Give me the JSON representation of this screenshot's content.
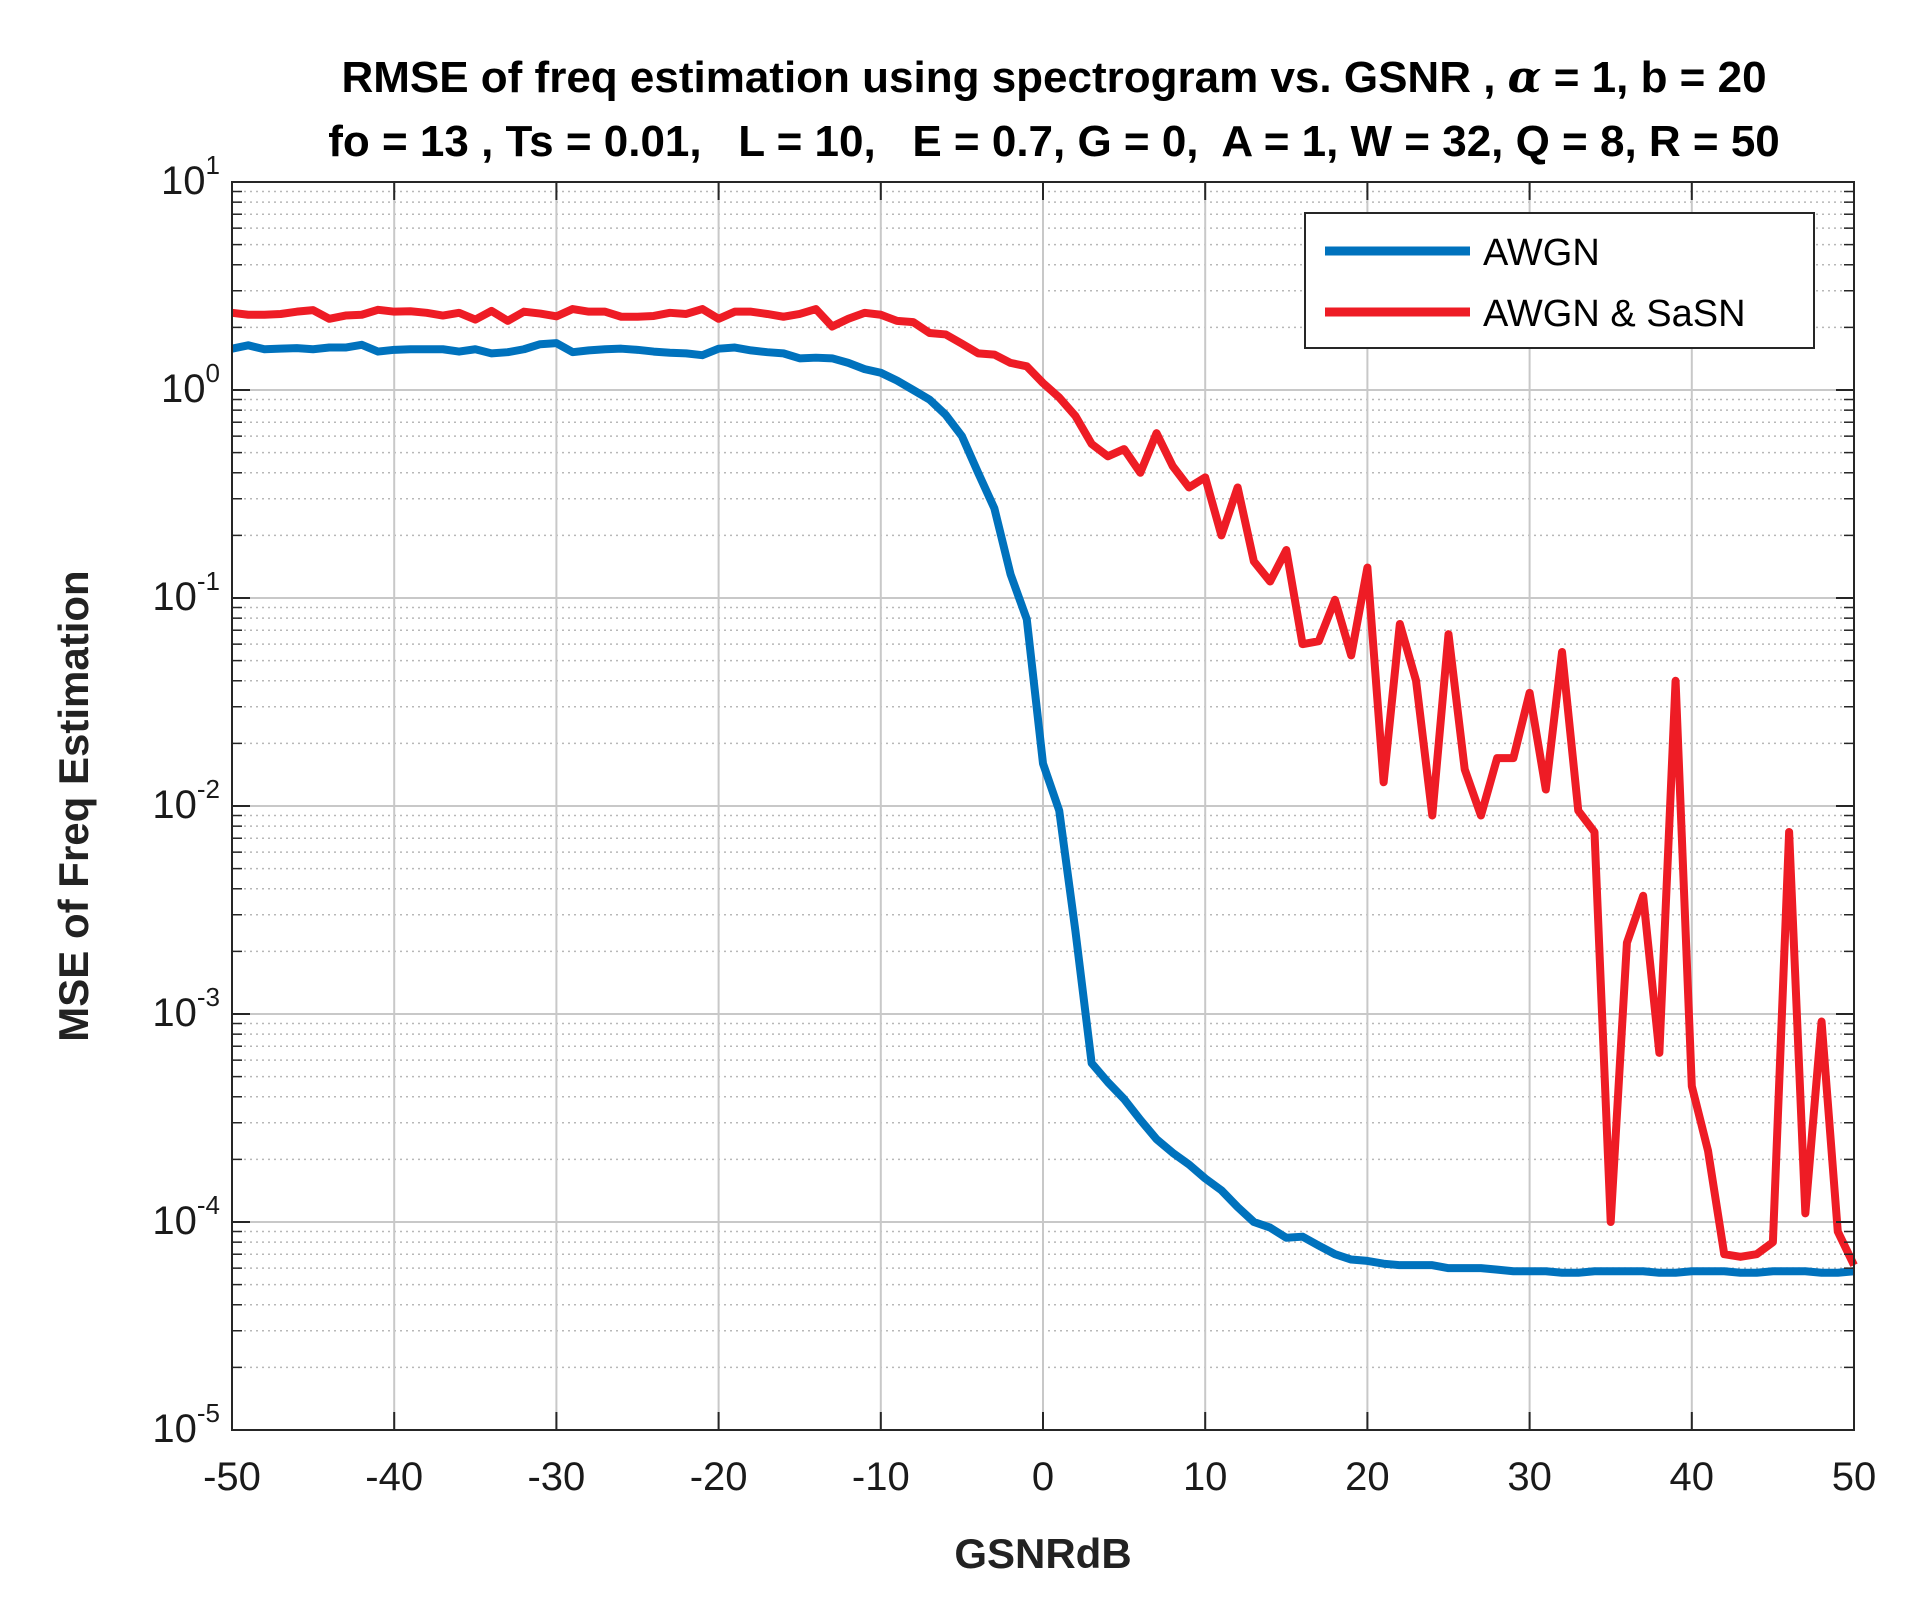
{
  "chart_data": {
    "type": "line",
    "title_line1_pre": "RMSE of freq estimation using spectrogram vs. GSNR , ",
    "title_alpha": "α",
    "title_line1_post": " = 1, b = 20",
    "title_line2": "fo = 13 , Ts = 0.01,   L = 10,   E = 0.7, G = 0,  A = 1, W = 32, Q = 8, R = 50",
    "xlabel": "GSNRdB",
    "ylabel": "MSE of Freq Estimation",
    "xlim": [
      -50,
      50
    ],
    "ylim": [
      1e-05,
      10
    ],
    "yscale": "log",
    "grid": true,
    "minor_grid": true,
    "legend_position": "top-right",
    "x_ticks": [
      "-50",
      "-40",
      "-30",
      "-20",
      "-10",
      "0",
      "10",
      "20",
      "30",
      "40",
      "50"
    ],
    "y_ticks": [
      {
        "base": "10",
        "exp": "1",
        "value": 10
      },
      {
        "base": "10",
        "exp": "0",
        "value": 1
      },
      {
        "base": "10",
        "exp": "-1",
        "value": 0.1
      },
      {
        "base": "10",
        "exp": "-2",
        "value": 0.01
      },
      {
        "base": "10",
        "exp": "-3",
        "value": 0.001
      },
      {
        "base": "10",
        "exp": "-4",
        "value": 0.0001
      },
      {
        "base": "10",
        "exp": "-5",
        "value": 1e-05
      }
    ],
    "x": [
      -50,
      -49,
      -48,
      -47,
      -46,
      -45,
      -44,
      -43,
      -42,
      -41,
      -40,
      -39,
      -38,
      -37,
      -36,
      -35,
      -34,
      -33,
      -32,
      -31,
      -30,
      -29,
      -28,
      -27,
      -26,
      -25,
      -24,
      -23,
      -22,
      -21,
      -20,
      -19,
      -18,
      -17,
      -16,
      -15,
      -14,
      -13,
      -12,
      -11,
      -10,
      -9,
      -8,
      -7,
      -6,
      -5,
      -4,
      -3,
      -2,
      -1,
      0,
      1,
      2,
      3,
      4,
      5,
      6,
      7,
      8,
      9,
      10,
      11,
      12,
      13,
      14,
      15,
      16,
      17,
      18,
      19,
      20,
      21,
      22,
      23,
      24,
      25,
      26,
      27,
      28,
      29,
      30,
      31,
      32,
      33,
      34,
      35,
      36,
      37,
      38,
      39,
      40,
      41,
      42,
      43,
      44,
      45,
      46,
      47,
      48,
      49,
      50
    ],
    "series": [
      {
        "name": "AWGN",
        "color": "#0072BD",
        "values": [
          1.58,
          1.64,
          1.57,
          1.58,
          1.59,
          1.57,
          1.6,
          1.6,
          1.65,
          1.53,
          1.56,
          1.57,
          1.57,
          1.57,
          1.53,
          1.57,
          1.5,
          1.52,
          1.57,
          1.66,
          1.68,
          1.52,
          1.55,
          1.57,
          1.58,
          1.56,
          1.53,
          1.51,
          1.5,
          1.47,
          1.58,
          1.6,
          1.55,
          1.52,
          1.5,
          1.42,
          1.43,
          1.42,
          1.35,
          1.26,
          1.21,
          1.11,
          1.0,
          0.9,
          0.76,
          0.6,
          0.4,
          0.27,
          0.13,
          0.079,
          0.016,
          0.0095,
          0.0025,
          0.00058,
          0.00047,
          0.00039,
          0.00031,
          0.00025,
          0.000215,
          0.000189,
          0.000162,
          0.000142,
          0.000118,
          0.0001,
          9.4e-05,
          8.4e-05,
          8.5e-05,
          7.7e-05,
          7e-05,
          6.6e-05,
          6.5e-05,
          6.3e-05,
          6.2e-05,
          6.2e-05,
          6.2e-05,
          6e-05,
          6e-05,
          6e-05,
          5.9e-05,
          5.8e-05,
          5.8e-05,
          5.8e-05,
          5.7e-05,
          5.7e-05,
          5.8e-05,
          5.8e-05,
          5.8e-05,
          5.8e-05,
          5.7e-05,
          5.7e-05,
          5.8e-05,
          5.8e-05,
          5.8e-05,
          5.7e-05,
          5.7e-05,
          5.8e-05,
          5.8e-05,
          5.8e-05,
          5.7e-05,
          5.7e-05,
          5.8e-05
        ]
      },
      {
        "name": "AWGN & SaSN",
        "color": "#EE1C25",
        "values": [
          2.35,
          2.3,
          2.3,
          2.32,
          2.38,
          2.42,
          2.2,
          2.28,
          2.3,
          2.43,
          2.38,
          2.39,
          2.35,
          2.28,
          2.35,
          2.18,
          2.4,
          2.15,
          2.38,
          2.33,
          2.26,
          2.45,
          2.38,
          2.38,
          2.25,
          2.25,
          2.27,
          2.35,
          2.32,
          2.45,
          2.2,
          2.38,
          2.38,
          2.32,
          2.25,
          2.32,
          2.45,
          2.02,
          2.2,
          2.35,
          2.3,
          2.15,
          2.12,
          1.88,
          1.85,
          1.67,
          1.5,
          1.48,
          1.35,
          1.3,
          1.08,
          0.92,
          0.75,
          0.55,
          0.48,
          0.52,
          0.4,
          0.62,
          0.43,
          0.34,
          0.38,
          0.2,
          0.34,
          0.15,
          0.12,
          0.17,
          0.06,
          0.062,
          0.098,
          0.053,
          0.14,
          0.013,
          0.075,
          0.04,
          0.009,
          0.067,
          0.015,
          0.009,
          0.017,
          0.017,
          0.035,
          0.012,
          0.055,
          0.0095,
          0.0075,
          0.0001,
          0.0022,
          0.0037,
          0.00065,
          0.04,
          0.00045,
          0.00022,
          7e-05,
          6.8e-05,
          7e-05,
          8e-05,
          0.0075,
          0.00011,
          0.00092,
          9e-05,
          6.2e-05
        ]
      }
    ]
  }
}
